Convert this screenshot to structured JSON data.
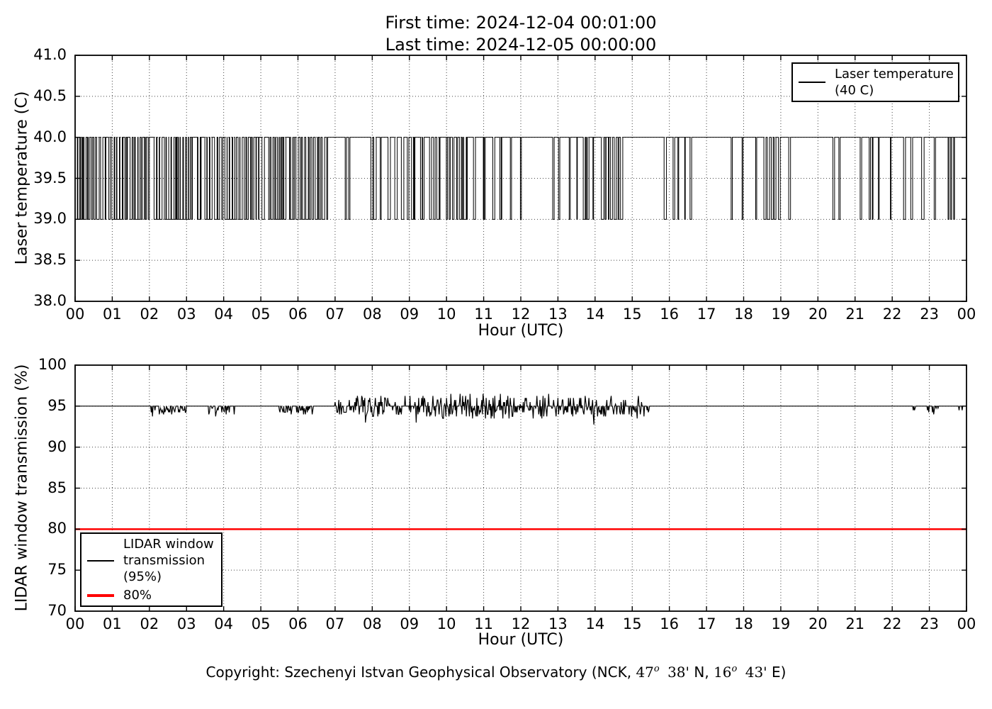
{
  "title": {
    "line1": "First time: 2024-12-04 00:01:00",
    "line2": "Last time: 2024-12-05 00:00:00"
  },
  "colors": {
    "series_line": "#000000",
    "threshold_line": "#ff0000",
    "grid": "#444444",
    "frame": "#000000",
    "background": "#ffffff"
  },
  "copyright_parts": [
    {
      "text": "Copyright: Szechenyi Istvan Geophysical Observatory (NCK, ",
      "style": "sans"
    },
    {
      "text": "47",
      "style": "serif"
    },
    {
      "text": "o",
      "style": "sup"
    },
    {
      "text": " 38' ",
      "style": "serif"
    },
    {
      "text": "N, ",
      "style": "sans"
    },
    {
      "text": "16",
      "style": "serif"
    },
    {
      "text": "o",
      "style": "sup"
    },
    {
      "text": " 43' ",
      "style": "serif"
    },
    {
      "text": "E)",
      "style": "sans"
    }
  ],
  "chart_data": [
    {
      "type": "line",
      "title": "",
      "xlabel": "Hour (UTC)",
      "ylabel": "Laser temperature (C)",
      "xlim": [
        0,
        24
      ],
      "ylim": [
        38.0,
        41.0
      ],
      "grid": true,
      "xtick_labels": [
        "00",
        "01",
        "02",
        "03",
        "04",
        "05",
        "06",
        "07",
        "08",
        "09",
        "10",
        "11",
        "12",
        "13",
        "14",
        "15",
        "16",
        "17",
        "18",
        "19",
        "20",
        "21",
        "22",
        "23",
        "00"
      ],
      "ytick_labels": [
        "38.0",
        "38.5",
        "39.0",
        "39.5",
        "40.0",
        "40.5",
        "41.0"
      ],
      "legend": {
        "position": "upper right",
        "entries": [
          {
            "lines": [
              "Laser temperature",
              "(40 C)"
            ],
            "color": "#000000",
            "sample_thickness": 2
          }
        ]
      },
      "series": [
        {
          "name": "Laser temperature (40 C)",
          "color": "#000000",
          "waveform": "square",
          "high": 40.0,
          "low": 39.0,
          "description": "Thermostat-style square wave toggling between 39 C and 40 C; density_segments give [startHour, endHour, fractionOfTimeAtLow]",
          "density_segments": [
            [
              0,
              0.75,
              0.6
            ],
            [
              0.75,
              0.95,
              0.4
            ],
            [
              0.95,
              2.0,
              0.58
            ],
            [
              2.0,
              2.12,
              0.08
            ],
            [
              2.12,
              3.4,
              0.58
            ],
            [
              3.4,
              3.55,
              0.1
            ],
            [
              3.55,
              5.0,
              0.55
            ],
            [
              5.0,
              5.18,
              0.08
            ],
            [
              5.18,
              6.55,
              0.52
            ],
            [
              6.55,
              6.8,
              0.3
            ],
            [
              6.8,
              7.25,
              0
            ],
            [
              7.25,
              7.4,
              0.25
            ],
            [
              7.4,
              7.85,
              0.03
            ],
            [
              7.85,
              8.35,
              0.3
            ],
            [
              8.35,
              8.6,
              0.08
            ],
            [
              8.6,
              9.15,
              0.35
            ],
            [
              9.15,
              9.35,
              0.06
            ],
            [
              9.35,
              10.1,
              0.35
            ],
            [
              10.1,
              10.35,
              0.05
            ],
            [
              10.35,
              11.05,
              0.3
            ],
            [
              11.05,
              11.3,
              0.12
            ],
            [
              11.3,
              11.75,
              0.3
            ],
            [
              11.75,
              12.7,
              0.03
            ],
            [
              12.7,
              13.05,
              0.22
            ],
            [
              13.05,
              13.5,
              0.02
            ],
            [
              13.5,
              14.4,
              0.3
            ],
            [
              14.4,
              14.8,
              0.6
            ],
            [
              14.8,
              15.85,
              0.02
            ],
            [
              15.85,
              16.6,
              0.14
            ],
            [
              16.6,
              17.3,
              0.07
            ],
            [
              17.3,
              17.95,
              0.03
            ],
            [
              17.95,
              19.05,
              0.18
            ],
            [
              19.05,
              19.55,
              0.1
            ],
            [
              19.55,
              20.3,
              0.02
            ],
            [
              20.3,
              20.6,
              0.12
            ],
            [
              20.6,
              21.1,
              0.04
            ],
            [
              21.1,
              21.65,
              0.14
            ],
            [
              21.65,
              22.3,
              0.03
            ],
            [
              22.3,
              23.0,
              0.16
            ],
            [
              23.0,
              23.4,
              0.04
            ],
            [
              23.4,
              23.6,
              0.12
            ],
            [
              23.6,
              23.9,
              0.02
            ],
            [
              23.9,
              24.0,
              0.18
            ]
          ]
        }
      ]
    },
    {
      "type": "line",
      "title": "",
      "xlabel": "Hour (UTC)",
      "ylabel": "LIDAR window transmission (%)",
      "xlim": [
        0,
        24
      ],
      "ylim": [
        70,
        100
      ],
      "grid": true,
      "xtick_labels": [
        "00",
        "01",
        "02",
        "03",
        "04",
        "05",
        "06",
        "07",
        "08",
        "09",
        "10",
        "11",
        "12",
        "13",
        "14",
        "15",
        "16",
        "17",
        "18",
        "19",
        "20",
        "21",
        "22",
        "23",
        "00"
      ],
      "ytick_labels": [
        "70",
        "75",
        "80",
        "85",
        "90",
        "95",
        "100"
      ],
      "legend": {
        "position": "lower left",
        "entries": [
          {
            "lines": [
              "LIDAR window",
              "transmission",
              "(95%)"
            ],
            "color": "#000000",
            "sample_thickness": 2
          },
          {
            "lines": [
              "80%"
            ],
            "color": "#ff0000",
            "sample_thickness": 4
          }
        ]
      },
      "series": [
        {
          "name": "LIDAR window transmission (95%)",
          "color": "#000000",
          "waveform": "noise",
          "baseline": 95,
          "value_min": 92.25,
          "value_max": 97.0,
          "description": "Mostly flat at 95%; noise_segments give [startHour, endHour, mode(flat|down|both), probability, amplitude %]",
          "noise_segments": [
            [
              0,
              2.05,
              "flat",
              0,
              0
            ],
            [
              2.05,
              3.0,
              "down",
              0.5,
              0.8
            ],
            [
              3.0,
              3.6,
              "flat",
              0,
              0
            ],
            [
              3.6,
              4.3,
              "down",
              0.45,
              0.8
            ],
            [
              4.3,
              4.5,
              "down",
              0.12,
              0.6
            ],
            [
              4.5,
              5.45,
              "flat",
              0,
              0
            ],
            [
              5.45,
              6.45,
              "down",
              0.45,
              0.8
            ],
            [
              6.45,
              7.0,
              "flat",
              0,
              0
            ],
            [
              7.0,
              7.6,
              "both",
              0.5,
              0.8
            ],
            [
              7.6,
              8.45,
              "both",
              0.6,
              1.0
            ],
            [
              8.45,
              9.3,
              "both",
              0.5,
              0.9
            ],
            [
              9.3,
              12.2,
              "both",
              0.65,
              1.3
            ],
            [
              12.2,
              14.2,
              "both",
              0.6,
              1.2
            ],
            [
              14.2,
              15.5,
              "both",
              0.45,
              1.0
            ],
            [
              15.5,
              22.55,
              "flat",
              0,
              0
            ],
            [
              22.55,
              22.68,
              "down",
              0.5,
              0.7
            ],
            [
              22.68,
              22.95,
              "flat",
              0,
              0
            ],
            [
              22.95,
              23.25,
              "down",
              0.5,
              0.8
            ],
            [
              23.25,
              23.8,
              "flat",
              0,
              0
            ],
            [
              23.8,
              23.92,
              "down",
              0.5,
              0.7
            ],
            [
              23.92,
              24.0,
              "flat",
              0,
              0
            ]
          ]
        },
        {
          "name": "80%",
          "color": "#ff0000",
          "waveform": "constant",
          "value": 80,
          "linewidth": 2.5
        }
      ]
    }
  ]
}
